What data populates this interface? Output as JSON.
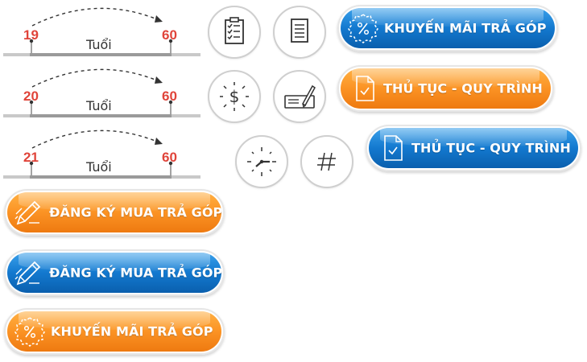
{
  "timelines": [
    {
      "start_age": "19",
      "end_age": "60",
      "unit": "Tuổi"
    },
    {
      "start_age": "20",
      "end_age": "60",
      "unit": "Tuổi"
    },
    {
      "start_age": "21",
      "end_age": "60",
      "unit": "Tuổi"
    }
  ],
  "icons": [
    {
      "name": "clipboard-checklist-icon"
    },
    {
      "name": "document-lines-icon"
    },
    {
      "name": "dollar-sparkle-icon"
    },
    {
      "name": "signature-pen-icon"
    },
    {
      "name": "clock-icon"
    },
    {
      "name": "hash-icon"
    }
  ],
  "buttons": {
    "promo_blue": {
      "label": "KHUYẾN MÃI TRẢ GÓP",
      "icon": "percent-badge-icon",
      "color": "#1379cf"
    },
    "procedure_orange": {
      "label": "THỦ TỤC - QUY TRÌNH",
      "icon": "document-check-icon",
      "color": "#fb9324"
    },
    "procedure_blue": {
      "label": "THỦ TỤC - QUY TRÌNH",
      "icon": "document-check-icon",
      "color": "#1379cf"
    },
    "register_orange": {
      "label": "ĐĂNG KÝ MUA TRẢ GÓP",
      "icon": "pen-write-icon",
      "color": "#fb9324"
    },
    "register_blue": {
      "label": "ĐĂNG KÝ MUA TRẢ GÓP",
      "icon": "pen-write-icon",
      "color": "#1379cf"
    },
    "promo_orange": {
      "label": "KHUYẾN MÃI TRẢ GÓP",
      "icon": "percent-badge-icon",
      "color": "#fb9324"
    }
  }
}
